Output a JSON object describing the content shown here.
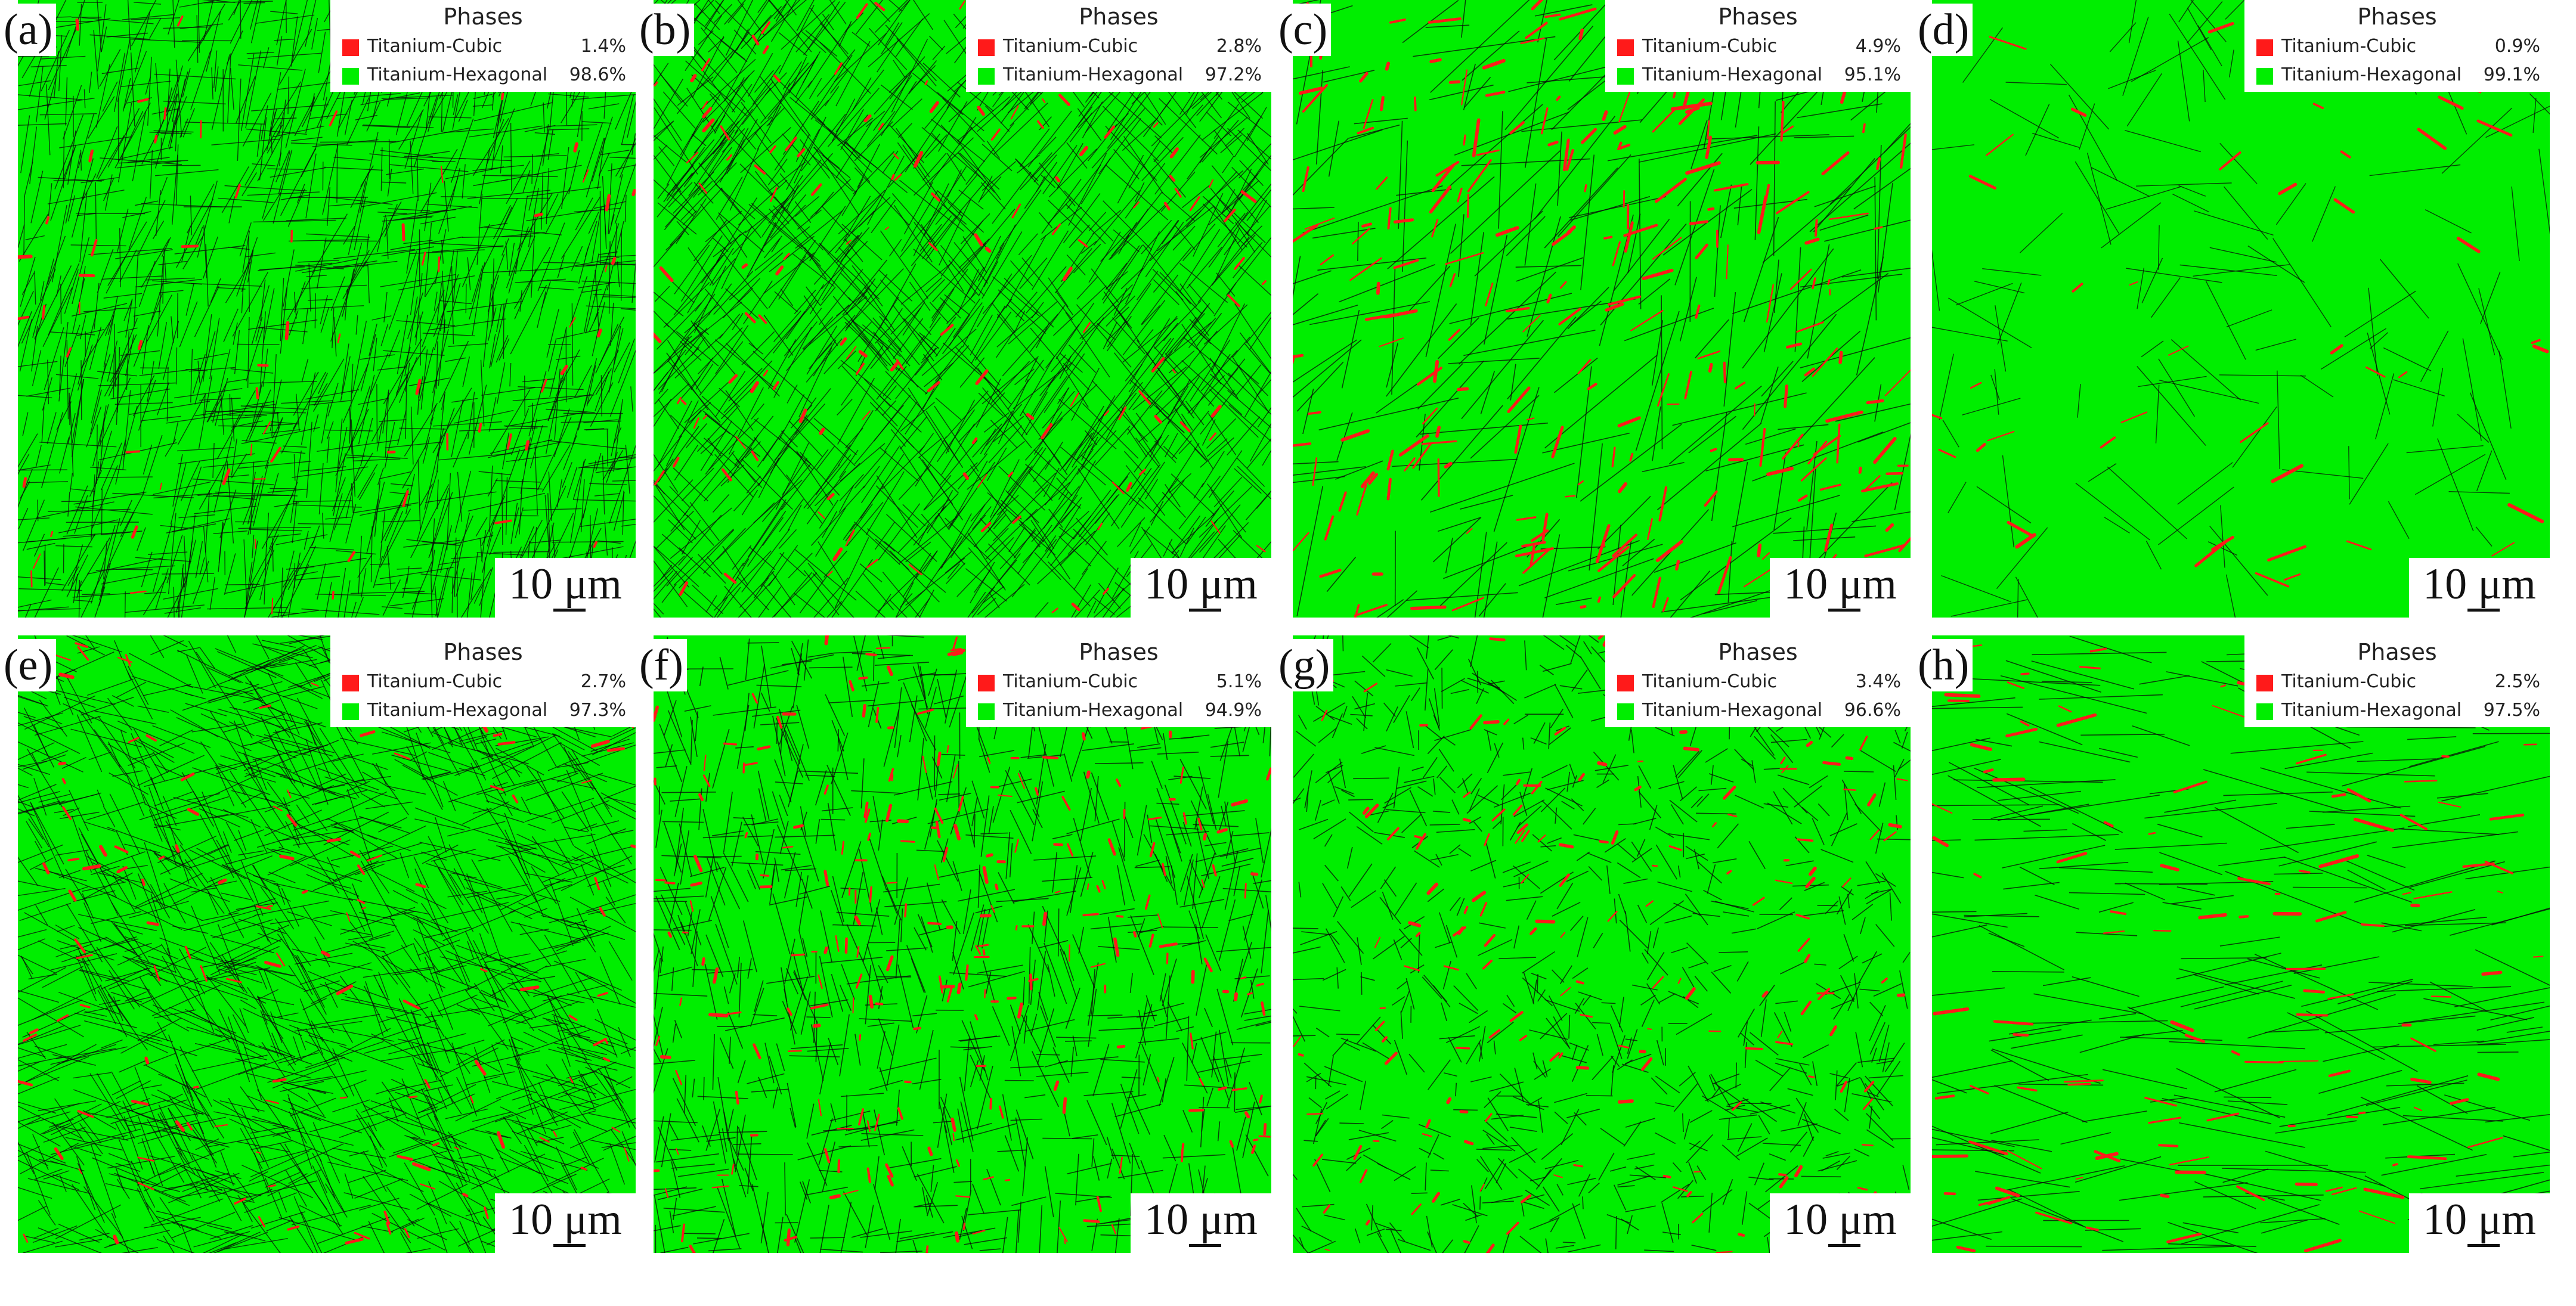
{
  "legend_title": "Phases",
  "scale_label": "10 μm",
  "colors": {
    "cubic": "#ff1a1a",
    "hexagonal": "#00ee00",
    "boundary": "#0a0a0a"
  },
  "panels": [
    {
      "label": "(a)",
      "cubic_name": "Titanium-Cubic",
      "cubic_pct": "1.4%",
      "hex_name": "Titanium-Hexagonal",
      "hex_pct": "98.6%",
      "texture": "fine-lath"
    },
    {
      "label": "(b)",
      "cubic_name": "Titanium-Cubic",
      "cubic_pct": "2.8%",
      "hex_name": "Titanium-Hexagonal",
      "hex_pct": "97.2%",
      "texture": "fine-lath"
    },
    {
      "label": "(c)",
      "cubic_name": "Titanium-Cubic",
      "cubic_pct": "4.9%",
      "hex_name": "Titanium-Hexagonal",
      "hex_pct": "95.1%",
      "texture": "coarse-lath"
    },
    {
      "label": "(d)",
      "cubic_name": "Titanium-Cubic",
      "cubic_pct": "0.9%",
      "hex_name": "Titanium-Hexagonal",
      "hex_pct": "99.1%",
      "texture": "coarse-grain"
    },
    {
      "label": "(e)",
      "cubic_name": "Titanium-Cubic",
      "cubic_pct": "2.7%",
      "hex_name": "Titanium-Hexagonal",
      "hex_pct": "97.3%",
      "texture": "fine-lath"
    },
    {
      "label": "(f)",
      "cubic_name": "Titanium-Cubic",
      "cubic_pct": "5.1%",
      "hex_name": "Titanium-Hexagonal",
      "hex_pct": "94.9%",
      "texture": "medium-lath"
    },
    {
      "label": "(g)",
      "cubic_name": "Titanium-Cubic",
      "cubic_pct": "3.4%",
      "hex_name": "Titanium-Hexagonal",
      "hex_pct": "96.6%",
      "texture": "medium-grain"
    },
    {
      "label": "(h)",
      "cubic_name": "Titanium-Cubic",
      "cubic_pct": "2.5%",
      "hex_name": "Titanium-Hexagonal",
      "hex_pct": "97.5%",
      "texture": "coarse-lath"
    }
  ]
}
